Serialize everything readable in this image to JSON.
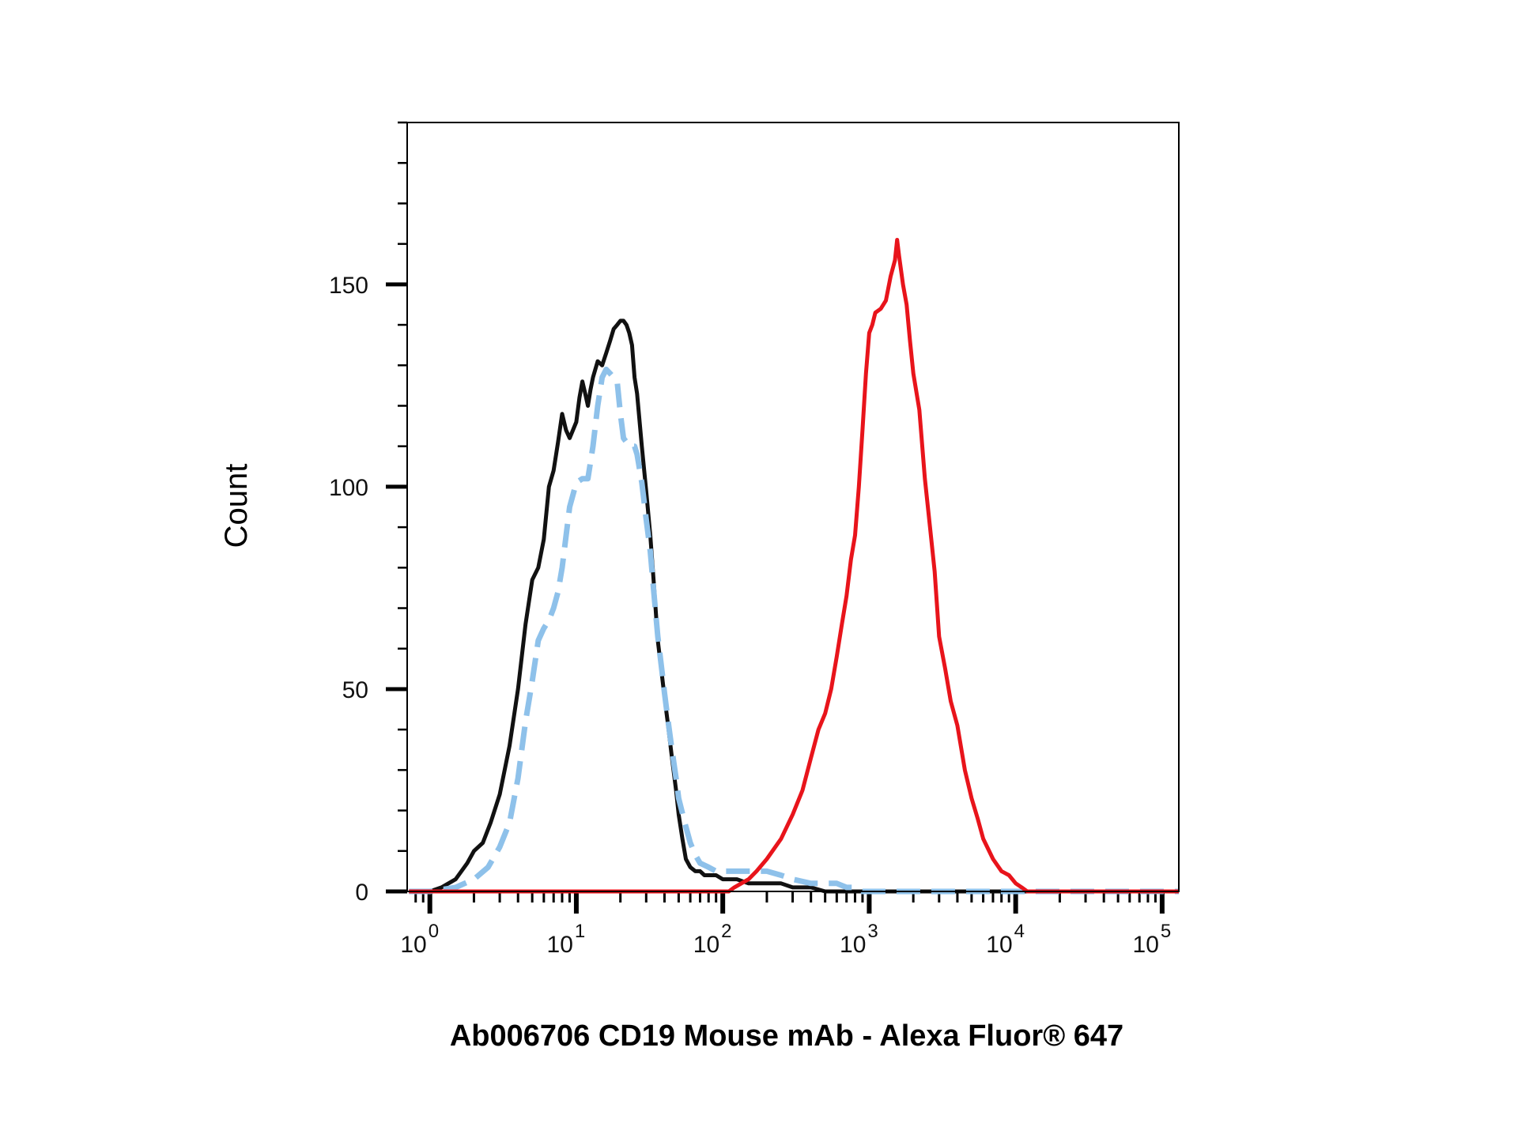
{
  "chart_data": {
    "type": "line",
    "title": "",
    "xlabel": "Ab006706 CD19 Mouse mAb - Alexa Fluor® 647",
    "ylabel": "Count",
    "xscale": "log",
    "xlim": [
      0.7,
      130000
    ],
    "ylim": [
      0,
      190
    ],
    "y_ticks": [
      {
        "value": 0,
        "label": "0"
      },
      {
        "value": 50,
        "label": "50"
      },
      {
        "value": 100,
        "label": "100"
      },
      {
        "value": 150,
        "label": "150"
      }
    ],
    "x_ticks": [
      {
        "value": 1,
        "base": "10",
        "exp": "0"
      },
      {
        "value": 10,
        "base": "10",
        "exp": "1"
      },
      {
        "value": 100,
        "base": "10",
        "exp": "2"
      },
      {
        "value": 1000,
        "base": "10",
        "exp": "3"
      },
      {
        "value": 10000,
        "base": "10",
        "exp": "4"
      },
      {
        "value": 100000,
        "base": "10",
        "exp": "5"
      }
    ],
    "series": [
      {
        "color": "#111111",
        "style": "solid",
        "x": [
          0.72,
          1,
          1.2,
          1.5,
          1.8,
          2,
          2.3,
          2.6,
          3,
          3.5,
          4,
          4.5,
          5,
          5.5,
          6,
          6.5,
          7,
          7.5,
          8,
          8.5,
          9,
          10,
          10.5,
          11,
          11.5,
          12,
          12.5,
          13,
          14,
          15,
          16,
          17,
          18,
          19,
          20,
          21,
          22,
          23,
          24,
          25,
          26,
          28,
          30,
          32,
          34,
          36,
          38,
          40,
          42,
          45,
          48,
          50,
          53,
          56,
          60,
          65,
          70,
          75,
          80,
          85,
          90,
          100,
          110,
          125,
          150,
          200,
          250,
          300,
          400,
          500,
          600,
          700,
          800,
          900,
          1000,
          1200,
          2000,
          5000,
          10000,
          50000,
          130000
        ],
        "y": [
          0,
          0,
          1,
          3,
          7,
          10,
          12,
          17,
          24,
          36,
          50,
          66,
          77,
          80,
          87,
          100,
          104,
          111,
          118,
          114,
          112,
          116,
          122,
          126,
          123,
          120,
          124,
          127,
          131,
          130,
          133,
          136,
          139,
          140,
          141,
          141,
          140,
          138,
          135,
          127,
          123,
          110,
          99,
          88,
          75,
          62,
          55,
          48,
          42,
          33,
          25,
          19,
          13,
          8,
          6,
          5,
          5,
          4,
          4,
          4,
          4,
          3,
          3,
          3,
          2,
          2,
          2,
          1,
          1,
          0,
          0,
          0,
          0,
          0,
          0,
          0,
          0,
          0,
          0,
          0,
          0
        ]
      },
      {
        "color": "#8EC1EA",
        "style": "dashed",
        "x": [
          0.72,
          1,
          1.5,
          2,
          2.5,
          3,
          3.5,
          4,
          4.5,
          5,
          5.5,
          6,
          6.5,
          7,
          7.5,
          8,
          9,
          10,
          11,
          12,
          13,
          14,
          15,
          16,
          17,
          18,
          19,
          20,
          21,
          22,
          23,
          24,
          25,
          26,
          28,
          30,
          32,
          34,
          36,
          38,
          40,
          42,
          45,
          48,
          50,
          55,
          60,
          65,
          70,
          80,
          90,
          100,
          120,
          150,
          200,
          250,
          300,
          400,
          500,
          600,
          700,
          800,
          900,
          1000,
          2000,
          5000,
          10000,
          20000,
          50000,
          130000
        ],
        "y": [
          0,
          0,
          1,
          3,
          6,
          11,
          17,
          28,
          42,
          52,
          62,
          65,
          67,
          70,
          74,
          80,
          95,
          101,
          102,
          102,
          110,
          120,
          127,
          129,
          128,
          127,
          126,
          118,
          112,
          111,
          110,
          110,
          110,
          108,
          101,
          92,
          84,
          73,
          63,
          56,
          49,
          43,
          35,
          28,
          23,
          17,
          12,
          9,
          7,
          6,
          5,
          5,
          5,
          5,
          5,
          4,
          3,
          2,
          2,
          2,
          1,
          1,
          0,
          0,
          0,
          0,
          0,
          0,
          0,
          0
        ]
      },
      {
        "color": "#E8141B",
        "style": "solid",
        "x": [
          0.72,
          10,
          50,
          90,
          100,
          110,
          120,
          150,
          170,
          200,
          250,
          300,
          350,
          400,
          450,
          500,
          550,
          600,
          650,
          700,
          750,
          800,
          850,
          900,
          950,
          1000,
          1050,
          1100,
          1200,
          1300,
          1400,
          1500,
          1550,
          1600,
          1700,
          1800,
          1900,
          2000,
          2200,
          2400,
          2600,
          2800,
          3000,
          3300,
          3600,
          4000,
          4500,
          5000,
          5500,
          6000,
          7000,
          8000,
          9000,
          10000,
          11000,
          12000,
          15000,
          20000,
          50000,
          130000
        ],
        "y": [
          0,
          0,
          0,
          0,
          0,
          0,
          1,
          3,
          5,
          8,
          13,
          19,
          25,
          33,
          40,
          44,
          50,
          58,
          66,
          73,
          82,
          88,
          100,
          114,
          128,
          138,
          140,
          143,
          144,
          146,
          152,
          156,
          161,
          157,
          150,
          145,
          136,
          128,
          119,
          102,
          90,
          79,
          63,
          55,
          47,
          41,
          30,
          23,
          18,
          13,
          8,
          5,
          4,
          2,
          1,
          0,
          0,
          0,
          0,
          0
        ]
      }
    ]
  }
}
